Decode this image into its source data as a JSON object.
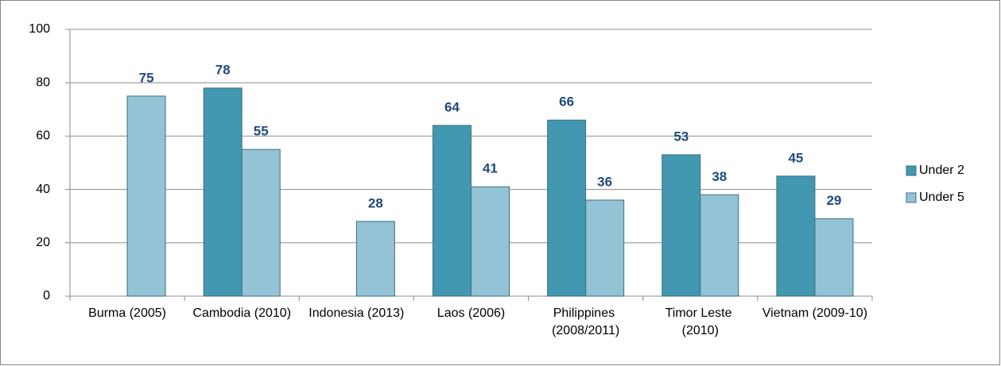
{
  "chart_data": {
    "type": "bar",
    "categories": [
      "Burma (2005)",
      "Cambodia (2010)",
      "Indonesia (2013)",
      "Laos (2006)",
      "Philippines (2008/2011)",
      "Timor Leste (2010)",
      "Vietnam (2009-10)"
    ],
    "series": [
      {
        "name": "Under 2",
        "color": "#4298b1",
        "values": [
          null,
          78,
          null,
          64,
          66,
          53,
          45
        ]
      },
      {
        "name": "Under 5",
        "color": "#93c3d5",
        "values": [
          75,
          55,
          28,
          41,
          36,
          38,
          29
        ]
      }
    ],
    "ylim": [
      0,
      100
    ],
    "yticks": [
      0,
      20,
      40,
      60,
      80,
      100
    ],
    "grid": true,
    "legend": "right"
  }
}
